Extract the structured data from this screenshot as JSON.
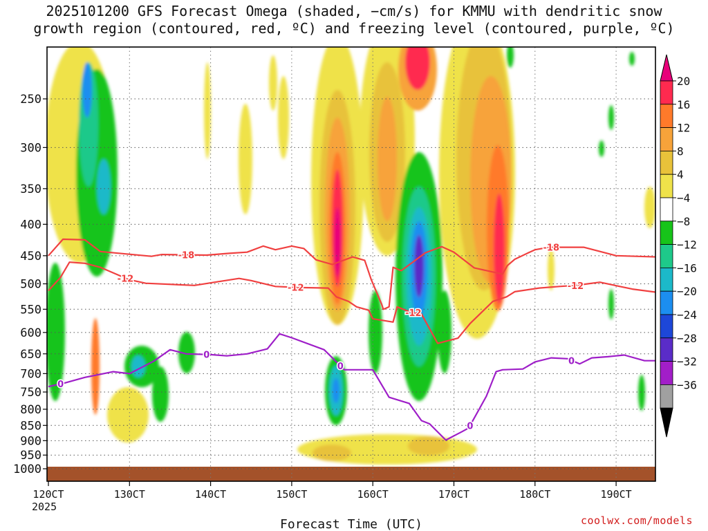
{
  "chart_data": {
    "type": "heatmap",
    "title_line1": "2025101200 GFS Forecast Omega (shaded, −cm/s) for KMMU with dendritic snow",
    "title_line2": "growth region (contoured, red, ºC) and freezing level (contoured, purple, ºC)",
    "xlabel": "Forecast Time (UTC)",
    "ylabel": "",
    "x_ticks": [
      "120CT",
      "130CT",
      "140CT",
      "150CT",
      "160CT",
      "170CT",
      "180CT",
      "190CT"
    ],
    "x_year_label": "2025",
    "y_ticks": [
      250,
      300,
      350,
      400,
      450,
      500,
      550,
      600,
      650,
      700,
      750,
      800,
      850,
      900,
      950,
      1000
    ],
    "colorbar_labels": [
      "20",
      "16",
      "12",
      "8",
      "4",
      "−4",
      "−8",
      "−12",
      "−16",
      "−20",
      "−24",
      "−28",
      "−32",
      "−36"
    ],
    "colorbar_colors": [
      "#ff2a4f",
      "#ff7a2a",
      "#f7a33a",
      "#e8c23a",
      "#efe24a",
      "#ffffff",
      "#17c41a",
      "#1ec98a",
      "#1cb9c9",
      "#1c8ef0",
      "#1d47d8",
      "#5a2cc8",
      "#a21ec8",
      "#a0a0a0"
    ],
    "colorbar_top_color": "#e8007a",
    "colorbar_bottom_color": "#000000",
    "contour_labels": {
      "dgz_upper": "-18",
      "dgz_lower": "-12",
      "freezing": "0"
    },
    "series": [
      {
        "name": "-18C isotherm",
        "color": "#f04040",
        "x": [
          0,
          1.8,
          4.5,
          6.4,
          12.7,
          14,
          19.5,
          22.3,
          24.5,
          26.5,
          28,
          30,
          31.5,
          33,
          35,
          37.5,
          39,
          39.8,
          41.1,
          41.3,
          41.6,
          42,
          42.5,
          43.5,
          46.5,
          48.5,
          50,
          52.5,
          56,
          56.6,
          57.5,
          59.2,
          60,
          61.8,
          66,
          70,
          75
        ],
        "y": [
          450,
          423,
          424,
          443,
          451,
          448,
          449,
          446,
          444,
          434,
          440,
          434,
          438,
          457,
          465,
          452,
          458,
          492,
          540,
          550,
          548,
          545,
          470,
          476,
          445,
          435,
          444,
          471,
          482,
          467,
          456,
          445,
          440,
          436,
          436,
          450,
          452
        ]
      },
      {
        "name": "-12C isotherm",
        "color": "#f04040",
        "x": [
          0,
          1.5,
          2.6,
          4.5,
          6.4,
          9.9,
          12,
          18,
          20.5,
          23.5,
          25,
          28,
          31,
          34.5,
          35.5,
          37,
          38,
          39.5,
          40,
          42.5,
          43,
          44.5,
          46,
          48,
          50.5,
          52,
          54.8,
          56.5,
          57.5,
          60.5,
          63,
          65,
          66.5,
          68,
          72,
          75
        ],
        "y": [
          513,
          488,
          461,
          463,
          470,
          492,
          499,
          503,
          497,
          490,
          494,
          505,
          507,
          508,
          525,
          534,
          545,
          552,
          570,
          577,
          545,
          555,
          560,
          625,
          613,
          580,
          534,
          525,
          515,
          508,
          505,
          503,
          500,
          497,
          510,
          516
        ]
      },
      {
        "name": "0C isotherm",
        "color": "#9e1ec8",
        "x": [
          0,
          2,
          4.5,
          8,
          10,
          13,
          15,
          17,
          20,
          22,
          24.5,
          27,
          28.5,
          30,
          34,
          36.5,
          40,
          42,
          44.5,
          46,
          47,
          49,
          51,
          51.7,
          52,
          54,
          55.2,
          56,
          58.5,
          60,
          62,
          64,
          65.5,
          67,
          69,
          71,
          73.5,
          75
        ],
        "y": [
          735,
          725,
          710,
          695,
          700,
          668,
          640,
          650,
          652,
          655,
          650,
          638,
          603,
          612,
          640,
          690,
          690,
          765,
          783,
          835,
          845,
          898,
          870,
          860,
          850,
          762,
          695,
          690,
          688,
          670,
          660,
          662,
          675,
          660,
          657,
          653,
          667,
          667
        ]
      }
    ]
  }
}
